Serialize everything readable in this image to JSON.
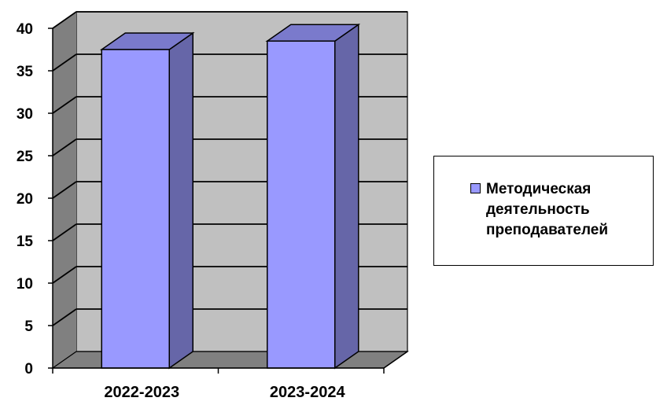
{
  "chart_data": {
    "type": "bar",
    "categories": [
      "2022-2023",
      "2023-2024"
    ],
    "series": [
      {
        "name": "Методическая деятельность преподавателей",
        "values": [
          37.5,
          38.5
        ]
      }
    ],
    "ylim": [
      0,
      40
    ],
    "yticks": [
      0,
      5,
      10,
      15,
      20,
      25,
      30,
      35,
      40
    ],
    "grid": true,
    "legend_position": "right",
    "colors": {
      "bar_front": "#9999ff",
      "bar_side": "#6666a8",
      "bar_top": "#7a7acc",
      "wall": "#c0c0c0",
      "floor": "#808080"
    }
  },
  "legend": {
    "label": "Методическая деятельность преподавателей"
  }
}
